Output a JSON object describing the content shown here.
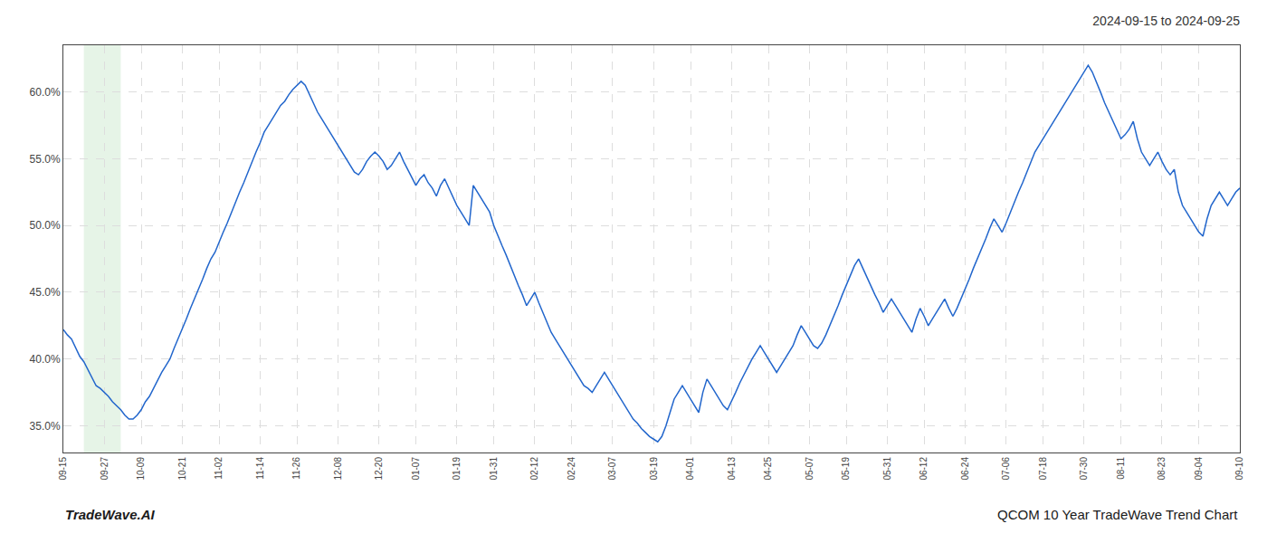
{
  "chart_data": {
    "type": "line",
    "title": "2024-09-15 to 2024-09-25",
    "annotations": [
      "TradeWave.AI",
      "QCOM 10 Year TradeWave Trend Chart"
    ],
    "color": "#2266cc",
    "grid": true,
    "ylim": [
      33.0,
      63.5
    ],
    "yticks": [
      {
        "value": 35.0,
        "label": "35.0%"
      },
      {
        "value": 40.0,
        "label": "40.0%"
      },
      {
        "value": 45.0,
        "label": "45.0%"
      },
      {
        "value": 50.0,
        "label": "50.0%"
      },
      {
        "value": 55.0,
        "label": "55.0%"
      },
      {
        "value": 60.0,
        "label": "60.0%"
      }
    ],
    "categories": [
      "09-15",
      null,
      null,
      null,
      null,
      null,
      null,
      null,
      null,
      null,
      "09-27",
      null,
      null,
      null,
      null,
      null,
      null,
      null,
      null,
      "10-09",
      null,
      null,
      null,
      null,
      null,
      null,
      null,
      null,
      null,
      "10-21",
      null,
      null,
      null,
      null,
      null,
      null,
      null,
      null,
      "11-02",
      null,
      null,
      null,
      null,
      null,
      null,
      null,
      null,
      null,
      "11-14",
      null,
      null,
      null,
      null,
      null,
      null,
      null,
      null,
      "11-26",
      null,
      null,
      null,
      null,
      null,
      null,
      null,
      null,
      null,
      "12-08",
      null,
      null,
      null,
      null,
      null,
      null,
      null,
      null,
      null,
      "12-20",
      null,
      null,
      null,
      null,
      null,
      null,
      null,
      null,
      "01-07",
      null,
      null,
      null,
      null,
      null,
      null,
      null,
      null,
      null,
      "01-19",
      null,
      null,
      null,
      null,
      null,
      null,
      null,
      null,
      "01-31",
      null,
      null,
      null,
      null,
      null,
      null,
      null,
      null,
      null,
      "02-12",
      null,
      null,
      null,
      null,
      null,
      null,
      null,
      null,
      "02-24",
      null,
      null,
      null,
      null,
      null,
      null,
      null,
      null,
      null,
      "03-07",
      null,
      null,
      null,
      null,
      null,
      null,
      null,
      null,
      null,
      "03-19",
      null,
      null,
      null,
      null,
      null,
      null,
      null,
      null,
      "04-01",
      null,
      null,
      null,
      null,
      null,
      null,
      null,
      null,
      null,
      "04-13",
      null,
      null,
      null,
      null,
      null,
      null,
      null,
      null,
      "04-25",
      null,
      null,
      null,
      null,
      null,
      null,
      null,
      null,
      null,
      "05-07",
      null,
      null,
      null,
      null,
      null,
      null,
      null,
      null,
      "05-19",
      null,
      null,
      null,
      null,
      null,
      null,
      null,
      null,
      null,
      "05-31",
      null,
      null,
      null,
      null,
      null,
      null,
      null,
      null,
      "06-12",
      null,
      null,
      null,
      null,
      null,
      null,
      null,
      null,
      null,
      "06-24",
      null,
      null,
      null,
      null,
      null,
      null,
      null,
      null,
      null,
      "07-06",
      null,
      null,
      null,
      null,
      null,
      null,
      null,
      null,
      "07-18",
      null,
      null,
      null,
      null,
      null,
      null,
      null,
      null,
      null,
      "07-30",
      null,
      null,
      null,
      null,
      null,
      null,
      null,
      null,
      "08-11",
      null,
      null,
      null,
      null,
      null,
      null,
      null,
      null,
      null,
      "08-23",
      null,
      null,
      null,
      null,
      null,
      null,
      null,
      null,
      "09-04",
      null,
      null,
      null,
      null,
      null,
      null,
      null,
      null,
      null,
      "09-10"
    ],
    "values": [
      42.2,
      41.8,
      41.5,
      40.8,
      40.2,
      39.8,
      39.2,
      38.5,
      38.0,
      37.8,
      37.5,
      37.2,
      36.8,
      36.5,
      36.2,
      35.8,
      35.5,
      35.5,
      35.8,
      36.2,
      36.8,
      37.2,
      37.8,
      38.5,
      39.0,
      39.5,
      40.0,
      40.8,
      41.5,
      42.2,
      43.0,
      43.8,
      44.5,
      45.2,
      46.0,
      46.8,
      47.5,
      48.0,
      48.8,
      49.5,
      50.2,
      51.0,
      51.8,
      52.5,
      53.2,
      54.0,
      54.8,
      55.5,
      56.2,
      57.0,
      57.5,
      58.0,
      58.5,
      59.0,
      59.3,
      59.8,
      60.2,
      60.5,
      60.8,
      60.5,
      59.8,
      59.2,
      58.5,
      58.0,
      57.5,
      57.0,
      56.5,
      56.0,
      55.5,
      55.0,
      54.5,
      54.0,
      53.8,
      54.2,
      54.8,
      55.2,
      55.5,
      55.2,
      54.8,
      54.2,
      54.5,
      55.0,
      55.5,
      54.8,
      54.2,
      53.5,
      53.0,
      53.5,
      53.8,
      53.2,
      52.8,
      52.2,
      53.0,
      53.5,
      52.8,
      52.2,
      51.5,
      51.0,
      50.5,
      50.0,
      53.0,
      52.5,
      52.0,
      51.5,
      51.0,
      50.0,
      49.2,
      48.5,
      47.8,
      47.0,
      46.2,
      45.5,
      44.8,
      44.0,
      44.5,
      45.0,
      44.2,
      43.5,
      42.8,
      42.0,
      41.5,
      41.0,
      40.5,
      40.0,
      39.5,
      39.0,
      38.5,
      38.0,
      37.8,
      37.5,
      38.0,
      38.5,
      39.0,
      38.5,
      38.0,
      37.5,
      37.0,
      36.5,
      36.0,
      35.5,
      35.2,
      34.8,
      34.5,
      34.2,
      34.0,
      33.8,
      34.2,
      35.0,
      36.0,
      37.0,
      37.5,
      38.0,
      37.5,
      37.0,
      36.5,
      36.0,
      37.5,
      38.5,
      38.0,
      37.5,
      37.0,
      36.5,
      36.2,
      36.8,
      37.5,
      38.2,
      38.8,
      39.5,
      40.0,
      40.5,
      41.0,
      40.5,
      40.0,
      39.5,
      39.0,
      39.5,
      40.0,
      40.5,
      41.0,
      41.8,
      42.5,
      42.0,
      41.5,
      41.0,
      40.8,
      41.2,
      41.8,
      42.5,
      43.2,
      44.0,
      44.8,
      45.5,
      46.2,
      47.0,
      47.5,
      46.8,
      46.2,
      45.5,
      44.8,
      44.2,
      43.5,
      44.0,
      44.5,
      44.0,
      43.5,
      43.0,
      42.5,
      42.0,
      43.0,
      43.8,
      43.2,
      42.5,
      43.0,
      43.5,
      44.0,
      44.5,
      43.8,
      43.2,
      43.8,
      44.5,
      45.2,
      46.0,
      46.8,
      47.5,
      48.2,
      49.0,
      49.8,
      50.5,
      50.0,
      49.5,
      50.2,
      51.0,
      51.8,
      52.5,
      53.2,
      54.0,
      54.8,
      55.5,
      56.0,
      56.5,
      57.0,
      57.5,
      58.0,
      58.5,
      59.0,
      59.5,
      60.0,
      60.5,
      61.0,
      61.5,
      62.0,
      61.5,
      60.8,
      60.0,
      59.2,
      58.5,
      57.8,
      57.2,
      56.5,
      56.8,
      57.2,
      57.8,
      56.5,
      55.5,
      55.0,
      54.5,
      55.0,
      55.5,
      54.8,
      54.2,
      53.8,
      54.2,
      52.5,
      51.5,
      51.0,
      50.5,
      50.0,
      49.5,
      49.2,
      50.5,
      51.5,
      52.0,
      52.5,
      52.0,
      51.5,
      52.0,
      52.5,
      52.8
    ]
  }
}
